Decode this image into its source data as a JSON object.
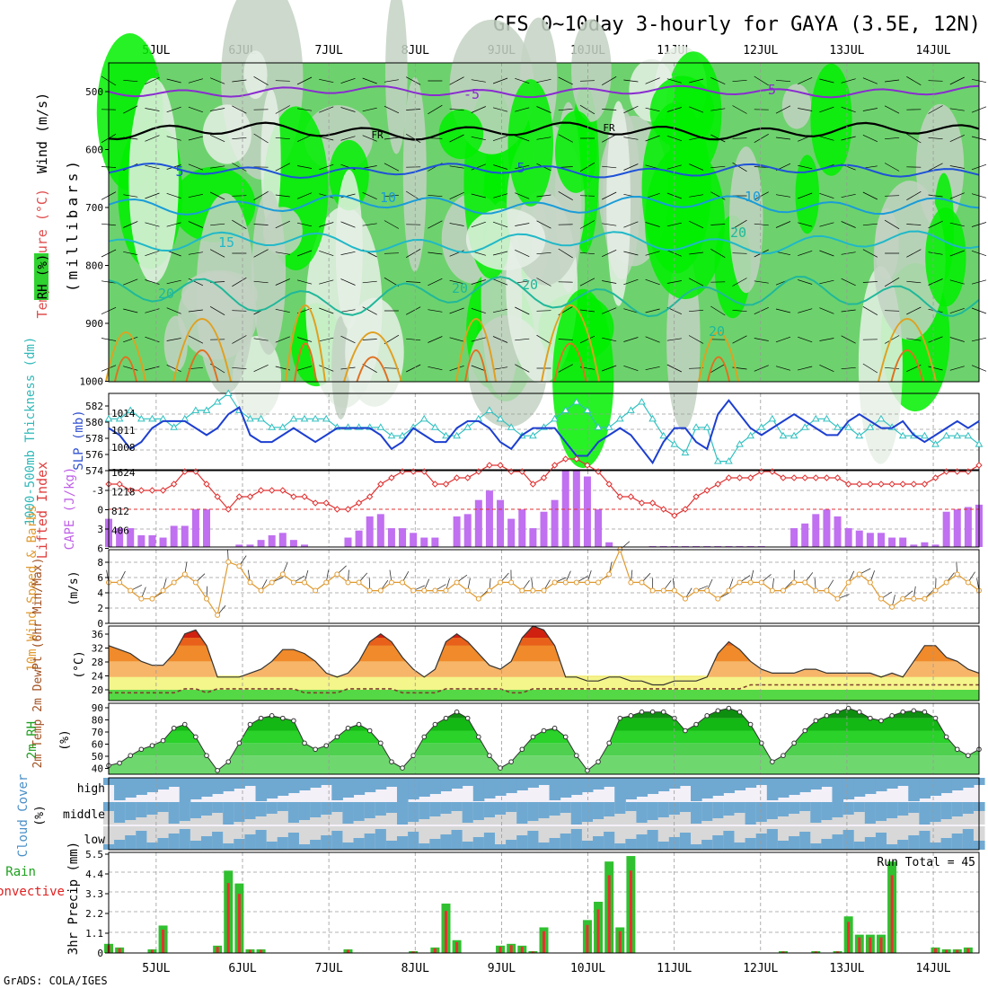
{
  "title": "GFS 0~10day 3-hourly for GAYA (3.5E, 12N)",
  "credit": "GrADS: COLA/IGES",
  "colors": {
    "frame": "#000000",
    "grid": "#9a9a9a",
    "rh_dark": "#00f000",
    "rh_mid": "#6dd26d",
    "rh_light": "#c3d2c3",
    "rh_pale": "#e6f0e6",
    "slp": "#1d3fd0",
    "thickness": "#30c0c0",
    "lifted_index": "#e03232",
    "cape": "#c070f0",
    "wind10": "#e09a30",
    "rh2m": "#30d030",
    "cloud": "#6fa9d2",
    "cloud_clear": "#f4f0f8",
    "cloud_grey": "#d8d8d8",
    "precip_total": "#30c030",
    "precip_conv": "#e83030"
  },
  "x_axis": {
    "dates": [
      "5JUL",
      "6JUL",
      "7JUL",
      "8JUL",
      "9JUL",
      "10JUL",
      "11JUL",
      "12JUL",
      "13JUL",
      "14JUL"
    ],
    "steps": 81
  },
  "panels": {
    "upper": {
      "ylabel_wind": "Wind (m/s)",
      "ylabel_temp": "Temperature (°C)",
      "ylabel_rh": "RH (%)",
      "ylabel_units": "(millibars)",
      "pressure_ticks": [
        "500",
        "600",
        "700",
        "800",
        "900",
        "1000"
      ],
      "contour_labels": [
        "-5",
        "-5",
        "FR",
        "FR",
        "5",
        "5",
        "10",
        "10",
        "15",
        "20",
        "20",
        "20",
        "20",
        "20"
      ]
    },
    "slp": {
      "ylabel_left": "1000-500mb Thickness (dm)",
      "ylabel_right": "SLP (mb)",
      "thickness_ticks": [
        "582",
        "580",
        "578",
        "576",
        "574"
      ],
      "slp_ticks": [
        "1014",
        "1011",
        "1008"
      ]
    },
    "cape": {
      "ylabel_left": "Lifted Index",
      "ylabel_right": "CAPE (J/kg)",
      "li_ticks": [
        "-3",
        "0",
        "3",
        "6"
      ],
      "cape_ticks": [
        "1624",
        "1218",
        "812",
        "406"
      ]
    },
    "wind": {
      "ylabel": "10m Wind Speed & Barbs",
      "units": "(m/s)",
      "ticks": [
        "8",
        "6",
        "4",
        "2",
        "0"
      ]
    },
    "temp": {
      "ylabel": "2m Temp 2m DewPt (6hr Min/Max)",
      "units": "(°C)",
      "ticks": [
        "36",
        "32",
        "28",
        "24",
        "20"
      ]
    },
    "rh": {
      "ylabel": "2m RH",
      "units": "(%)",
      "ticks": [
        "90",
        "80",
        "70",
        "60",
        "50",
        "40"
      ]
    },
    "cloud": {
      "ylabel": "Cloud Cover",
      "units": "(%)",
      "levels": [
        "high",
        "middle",
        "low"
      ]
    },
    "precip": {
      "ylabel_total": "Total / Rain",
      "ylabel_conv": "Convective",
      "ylabel": "3hr Precip (mm)",
      "ticks": [
        "5.5",
        "4.4",
        "3.3",
        "2.2",
        "1.1",
        "0"
      ],
      "run_total": "Run Total = 45"
    }
  },
  "chart_data": [
    {
      "type": "line",
      "title": "1000-500mb Thickness (dm) / SLP (mb)",
      "series": [
        {
          "name": "SLP (mb)",
          "ylim": [
            1005,
            1016
          ],
          "values": [
            1011,
            1010,
            1008,
            1009,
            1011,
            1012,
            1012,
            1012,
            1011,
            1010,
            1011,
            1013,
            1014,
            1010,
            1009,
            1009,
            1010,
            1011,
            1010,
            1009,
            1010,
            1011,
            1011,
            1011,
            1011,
            1010,
            1008,
            1009,
            1011,
            1010,
            1009,
            1009,
            1011,
            1012,
            1012,
            1011,
            1009,
            1008,
            1010,
            1011,
            1011,
            1011,
            1009,
            1007,
            1007,
            1009,
            1010,
            1011,
            1010,
            1008,
            1006,
            1009,
            1011,
            1011,
            1009,
            1008,
            1013,
            1015,
            1013,
            1011,
            1010,
            1011,
            1012,
            1013,
            1012,
            1011,
            1010,
            1010,
            1012,
            1013,
            1012,
            1011,
            1011,
            1012,
            1010,
            1009,
            1010,
            1011,
            1012,
            1011,
            1012,
            1014
          ]
        },
        {
          "name": "1000-500mb Thickness (dm)",
          "ylim": [
            574,
            583
          ],
          "values": [
            580,
            580,
            581,
            580,
            580,
            580,
            579,
            580,
            581,
            581,
            582,
            583,
            581,
            580,
            580,
            579,
            579,
            580,
            580,
            580,
            580,
            579,
            579,
            579,
            579,
            579,
            578,
            578,
            579,
            580,
            579,
            578,
            578,
            579,
            580,
            581,
            580,
            579,
            578,
            578,
            579,
            580,
            581,
            582,
            581,
            579,
            579,
            580,
            581,
            582,
            580,
            578,
            577,
            576,
            579,
            579,
            575,
            575,
            577,
            578,
            579,
            580,
            578,
            578,
            579,
            580,
            580,
            579,
            579,
            578,
            579,
            580,
            579,
            578,
            578,
            578,
            577,
            578,
            578,
            578,
            577,
            577
          ]
        }
      ]
    },
    {
      "type": "bar",
      "title": "CAPE (J/kg) / Lifted Index",
      "ylim": [
        0,
        1624
      ],
      "cape": [
        600,
        400,
        400,
        250,
        250,
        200,
        450,
        450,
        800,
        800,
        0,
        0,
        50,
        50,
        150,
        250,
        300,
        150,
        50,
        0,
        0,
        0,
        200,
        350,
        650,
        700,
        400,
        400,
        300,
        200,
        200,
        0,
        650,
        700,
        1000,
        1200,
        1000,
        600,
        800,
        400,
        750,
        1000,
        1624,
        1624,
        1500,
        800,
        100,
        0,
        0,
        0,
        20,
        20,
        20,
        20,
        20,
        20,
        20,
        20,
        20,
        20,
        20,
        0,
        0,
        400,
        500,
        700,
        800,
        650,
        400,
        350,
        300,
        300,
        200,
        200,
        50,
        100,
        50,
        750,
        800,
        850,
        900,
        900,
        600,
        500
      ],
      "lifted_index": [
        -2,
        -2,
        -1.5,
        -1.5,
        -1.5,
        -1.5,
        -2,
        -3,
        -3,
        -2,
        -1,
        0,
        -1,
        -1,
        -1.5,
        -1.5,
        -1.5,
        -1,
        -1,
        -0.5,
        -0.5,
        0,
        0,
        -0.5,
        -1,
        -2,
        -2.5,
        -3,
        -3,
        -3,
        -2,
        -2,
        -2.5,
        -2.5,
        -3,
        -3.5,
        -3.5,
        -3,
        -3,
        -2,
        -2.5,
        -3.5,
        -4,
        -4,
        -3.5,
        -3,
        -2,
        -1,
        -1,
        -0.5,
        -0.5,
        0,
        0.5,
        0,
        -1,
        -1.5,
        -2,
        -2.5,
        -2.5,
        -2.5,
        -3,
        -3,
        -2.5,
        -2.5,
        -2.5,
        -2.5,
        -2.5,
        -2.5,
        -2,
        -2,
        -2,
        -2,
        -2,
        -2,
        -2,
        -2,
        -2.5,
        -3,
        -3,
        -3,
        -3.5,
        -3.5,
        -2.5,
        -2
      ]
    },
    {
      "type": "line",
      "title": "10m Wind Speed & Barbs",
      "ylim": [
        0,
        9
      ],
      "values": [
        5,
        5,
        4,
        3,
        3,
        4,
        5,
        6,
        5,
        3,
        1,
        7.5,
        7,
        5,
        4,
        5,
        6,
        5,
        5,
        4,
        5,
        6,
        5,
        5,
        4,
        4,
        5,
        5,
        4,
        4,
        4,
        4,
        5,
        4,
        3,
        4,
        5,
        5,
        4,
        4,
        4,
        5,
        5,
        5,
        5,
        5,
        6,
        9,
        5,
        5,
        4,
        4,
        4,
        3,
        4,
        4,
        3,
        4,
        5,
        5,
        5,
        4,
        4,
        5,
        5,
        4,
        4,
        3,
        5,
        6,
        5,
        3,
        2,
        3,
        3,
        3,
        4,
        5,
        6,
        5,
        4,
        4,
        4,
        3,
        4
      ]
    },
    {
      "type": "area",
      "title": "2m Temp / 2m DewPt",
      "ylim": [
        18,
        37
      ],
      "temp": [
        32,
        31,
        30,
        28,
        27,
        27,
        30,
        35,
        36,
        32,
        24,
        24,
        24,
        25,
        26,
        28,
        31,
        31,
        30,
        28,
        25,
        24,
        25,
        28,
        33,
        35,
        33,
        29,
        26,
        24,
        26,
        33,
        35,
        33,
        30,
        27,
        26,
        28,
        34,
        37,
        36,
        32,
        24,
        24,
        23,
        23,
        24,
        24,
        23,
        23,
        22,
        22,
        23,
        23,
        23,
        24,
        30,
        33,
        31,
        28,
        26,
        25,
        25,
        25,
        26,
        26,
        25,
        25,
        25,
        25,
        25,
        24,
        25,
        24,
        28,
        32,
        32,
        29,
        28,
        26,
        25,
        24
      ],
      "dewpt": [
        20,
        20,
        20,
        20,
        20,
        20,
        20,
        21,
        21,
        20,
        21,
        21,
        21,
        21,
        21,
        21,
        21,
        21,
        20,
        20,
        20,
        20,
        21,
        21,
        21,
        21,
        21,
        20,
        20,
        20,
        20,
        21,
        21,
        21,
        21,
        21,
        21,
        20,
        20,
        21,
        21,
        21,
        21,
        21,
        21,
        21,
        21,
        21,
        21,
        21,
        21,
        21,
        21,
        21,
        21,
        21,
        21,
        21,
        21,
        22,
        22,
        22,
        22,
        22,
        22,
        22,
        22,
        22,
        22,
        22,
        22,
        22,
        22,
        22,
        22,
        22,
        22,
        22,
        22,
        22,
        22,
        22
      ]
    },
    {
      "type": "area",
      "title": "2m RH",
      "ylim": [
        35,
        92
      ],
      "values": [
        42,
        44,
        50,
        55,
        58,
        62,
        72,
        75,
        65,
        50,
        38,
        45,
        60,
        75,
        80,
        82,
        80,
        78,
        60,
        55,
        58,
        65,
        72,
        75,
        70,
        60,
        45,
        40,
        50,
        65,
        75,
        80,
        85,
        80,
        65,
        50,
        40,
        45,
        55,
        65,
        70,
        72,
        65,
        50,
        38,
        45,
        60,
        80,
        82,
        85,
        85,
        85,
        80,
        70,
        75,
        82,
        86,
        88,
        85,
        75,
        60,
        45,
        50,
        60,
        70,
        78,
        82,
        85,
        88,
        85,
        80,
        78,
        82,
        85,
        86,
        85,
        80,
        65,
        55,
        50,
        55,
        80,
        85
      ]
    },
    {
      "type": "bar",
      "title": "3hr Precip (mm)",
      "ylim": [
        0,
        5.5
      ],
      "total": [
        0.5,
        0.3,
        0,
        0,
        0.2,
        1.5,
        0,
        0,
        0,
        0,
        0.4,
        4.5,
        3.8,
        0.2,
        0.2,
        0,
        0,
        0,
        0,
        0,
        0,
        0,
        0.2,
        0,
        0,
        0,
        0,
        0,
        0.1,
        0,
        0.3,
        2.7,
        0.7,
        0,
        0,
        0,
        0.4,
        0.5,
        0.4,
        0.1,
        1.4,
        0,
        0,
        0,
        1.8,
        2.8,
        5.0,
        1.4,
        5.3,
        0,
        0,
        0,
        0,
        0,
        0,
        0,
        0,
        0,
        0,
        0,
        0,
        0,
        0.1,
        0,
        0,
        0.1,
        0,
        0.1,
        2.0,
        1.0,
        1.0,
        1.0,
        5.0,
        0,
        0,
        0,
        0.3,
        0.2,
        0.2,
        0.3,
        0,
        0.5,
        0.7,
        0.6,
        0
      ]
    }
  ]
}
